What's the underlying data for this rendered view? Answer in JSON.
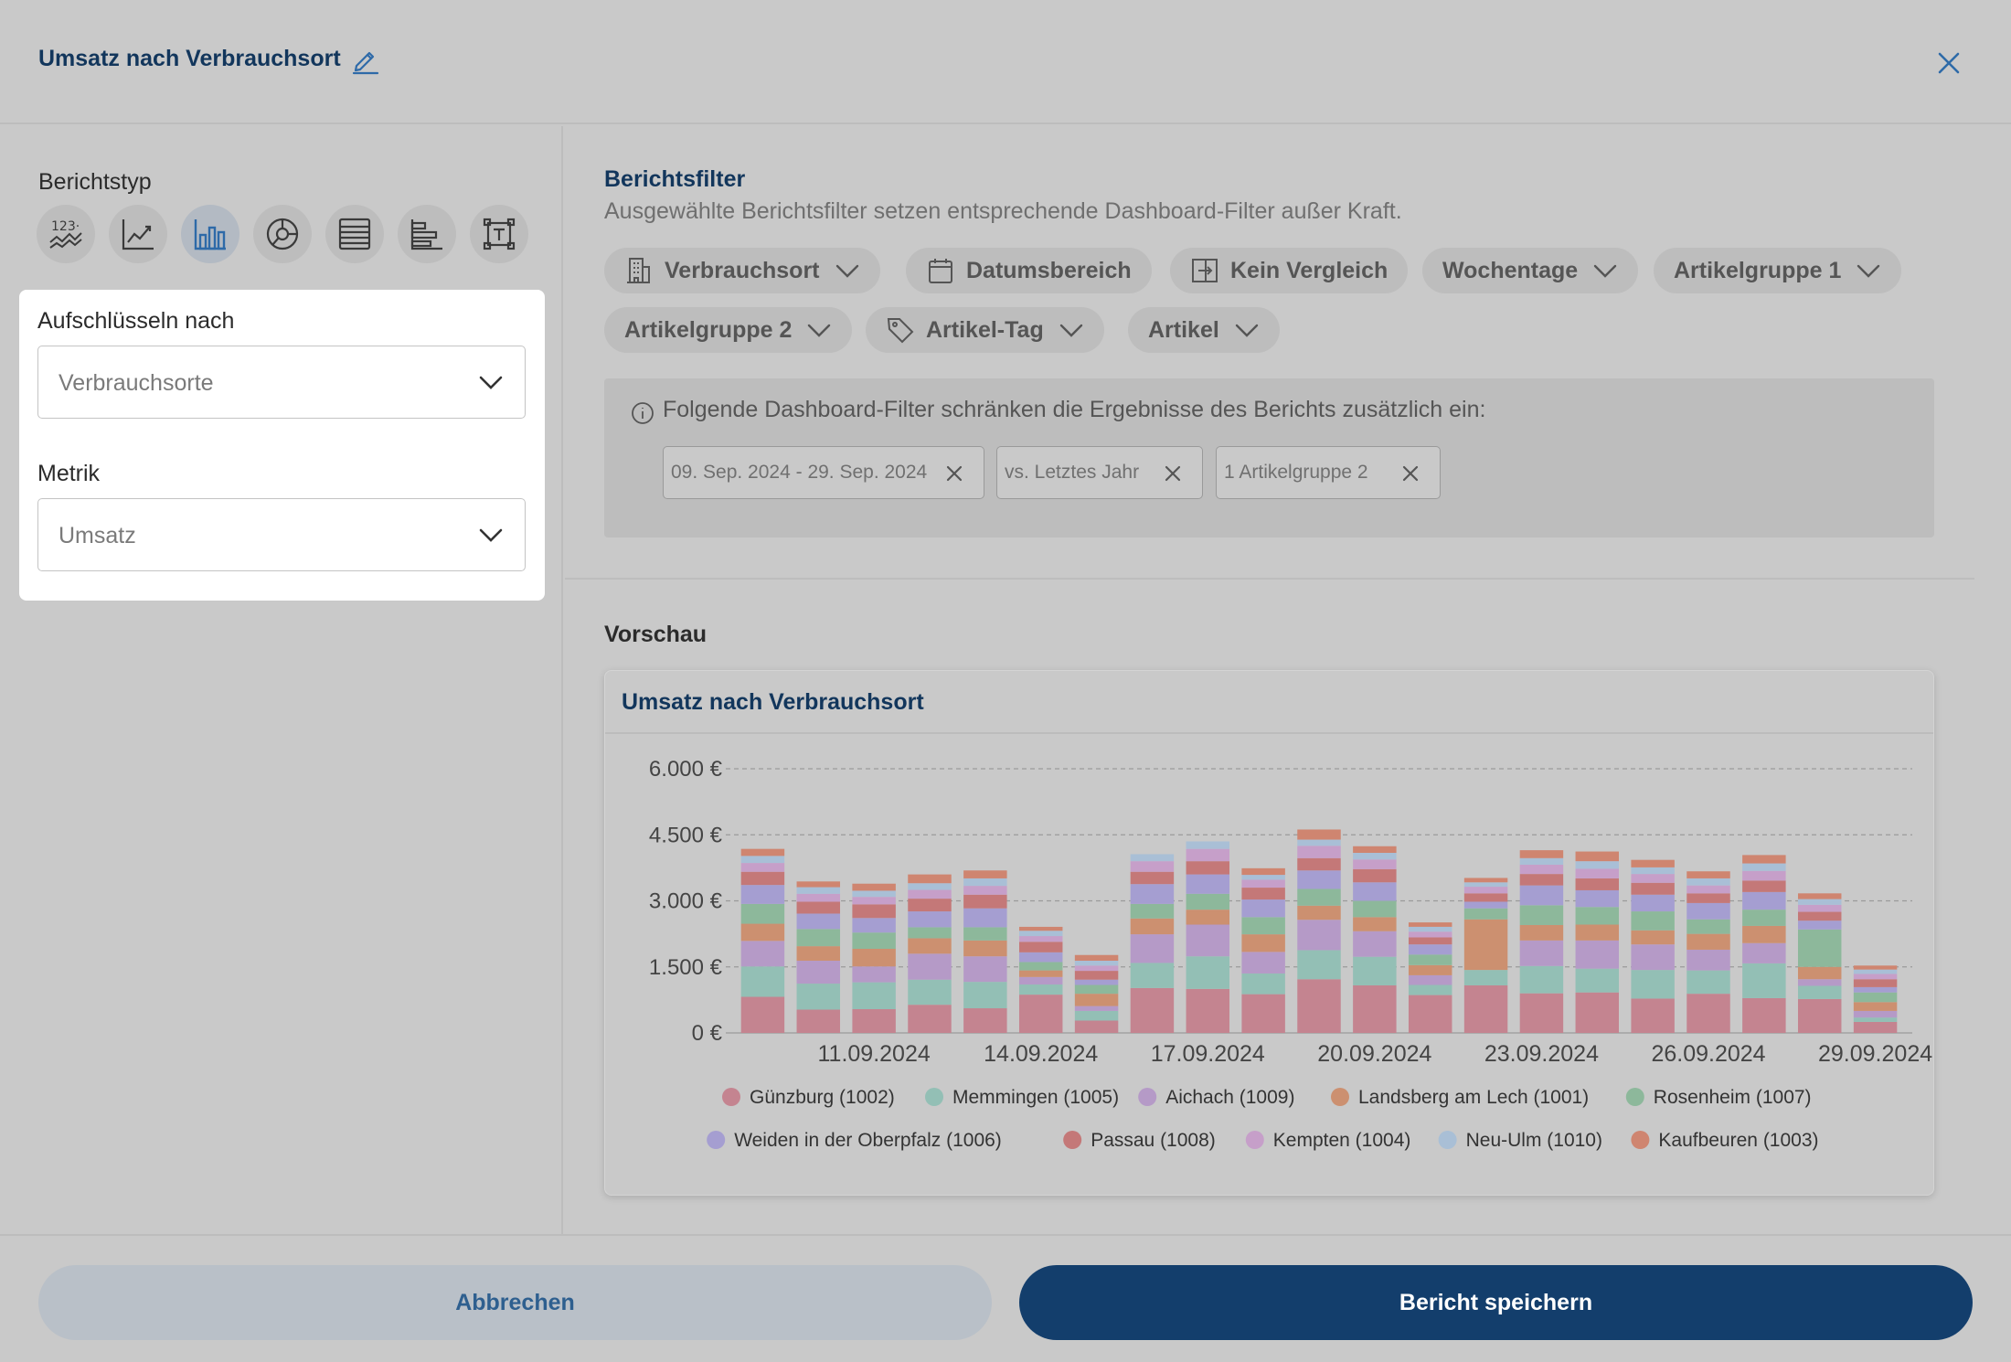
{
  "header": {
    "title": "Umsatz nach Verbrauchsort"
  },
  "left": {
    "report_type_label": "Berichtstyp",
    "report_types": [
      {
        "name": "kpi-type-icon",
        "active": false
      },
      {
        "name": "line-chart-type-icon",
        "active": false
      },
      {
        "name": "bar-chart-type-icon",
        "active": true
      },
      {
        "name": "pie-chart-type-icon",
        "active": false
      },
      {
        "name": "table-type-icon",
        "active": false
      },
      {
        "name": "horizontal-bar-type-icon",
        "active": false
      },
      {
        "name": "text-type-icon",
        "active": false
      }
    ],
    "breakdown_label": "Aufschlüsseln nach",
    "breakdown_value": "Verbrauchsorte",
    "metric_label": "Metrik",
    "metric_value": "Umsatz"
  },
  "filters": {
    "title": "Berichtsfilter",
    "subtitle": "Ausgewählte Berichtsfilter setzen entsprechende Dashboard-Filter außer Kraft.",
    "chips": [
      "Verbrauchsort",
      "Datumsbereich",
      "Kein Vergleich",
      "Wochentage",
      "Artikelgruppe 1",
      "Artikelgruppe 2",
      "Artikel-Tag",
      "Artikel"
    ],
    "info_text": "Folgende Dashboard-Filter schränken die Ergebnisse des Berichts zusätzlich ein:",
    "active_tags": [
      "09. Sep. 2024 - 29. Sep. 2024",
      "vs. Letztes Jahr",
      "1 Artikelgruppe 2"
    ]
  },
  "preview": {
    "label": "Vorschau",
    "card_title": "Umsatz nach Verbrauchsort"
  },
  "chart_data": {
    "type": "bar",
    "stacked": true,
    "title": "Umsatz nach Verbrauchsort",
    "ylim": [
      0,
      6000
    ],
    "yticks": [
      0,
      1500,
      3000,
      4500,
      6000
    ],
    "ytick_labels": [
      "0 €",
      "1.500 €",
      "3.000 €",
      "4.500 €",
      "6.000 €"
    ],
    "xtick_labels": [
      "11.09.2024",
      "14.09.2024",
      "17.09.2024",
      "20.09.2024",
      "23.09.2024",
      "26.09.2024",
      "29.09.2024"
    ],
    "xtick_index": [
      2,
      5,
      8,
      11,
      14,
      17,
      20
    ],
    "grid": true,
    "legend_position": "bottom",
    "categories": [
      "09.09.2024",
      "10.09.2024",
      "11.09.2024",
      "12.09.2024",
      "13.09.2024",
      "14.09.2024",
      "15.09.2024",
      "16.09.2024",
      "17.09.2024",
      "18.09.2024",
      "19.09.2024",
      "20.09.2024",
      "21.09.2024",
      "22.09.2024",
      "23.09.2024",
      "24.09.2024",
      "25.09.2024",
      "26.09.2024",
      "27.09.2024",
      "28.09.2024",
      "29.09.2024"
    ],
    "series": [
      {
        "name": "Günzburg (1002)",
        "color": "#c48490",
        "values": [
          820,
          530,
          540,
          640,
          560,
          870,
          280,
          1020,
          1000,
          880,
          1220,
          1080,
          860,
          1080,
          900,
          920,
          780,
          890,
          790,
          770,
          250
        ]
      },
      {
        "name": "Memmingen (1005)",
        "color": "#93bfb5",
        "values": [
          690,
          590,
          610,
          570,
          600,
          230,
          220,
          570,
          740,
          470,
          660,
          650,
          230,
          350,
          620,
          540,
          650,
          530,
          790,
          300,
          100
        ]
      },
      {
        "name": "Aichach (1009)",
        "color": "#b59ac7",
        "values": [
          580,
          520,
          360,
          590,
          580,
          170,
          110,
          650,
          720,
          490,
          690,
          580,
          220,
          0,
          580,
          640,
          580,
          470,
          460,
          150,
          150
        ]
      },
      {
        "name": "Landsberg am Lech (1001)",
        "color": "#cc9070",
        "values": [
          390,
          330,
          400,
          350,
          360,
          150,
          280,
          360,
          340,
          400,
          320,
          320,
          230,
          1150,
          350,
          360,
          320,
          360,
          390,
          280,
          200
        ]
      },
      {
        "name": "Rosenheim (1007)",
        "color": "#8db89b",
        "values": [
          450,
          390,
          370,
          250,
          300,
          190,
          200,
          330,
          360,
          390,
          380,
          370,
          240,
          250,
          450,
          400,
          430,
          330,
          370,
          850,
          220
        ]
      },
      {
        "name": "Weiden in der Oberpfalz (1006)",
        "color": "#a59ed1",
        "values": [
          430,
          350,
          330,
          360,
          430,
          220,
          120,
          450,
          440,
          400,
          420,
          420,
          230,
          150,
          450,
          380,
          380,
          370,
          400,
          200,
          120
        ]
      },
      {
        "name": "Passau (1008)",
        "color": "#c47878",
        "values": [
          300,
          270,
          310,
          290,
          310,
          240,
          200,
          280,
          300,
          270,
          280,
          300,
          160,
          190,
          260,
          270,
          270,
          220,
          260,
          200,
          180
        ]
      },
      {
        "name": "Kempten (1004)",
        "color": "#c69fc9",
        "values": [
          200,
          180,
          170,
          200,
          200,
          130,
          120,
          240,
          280,
          180,
          280,
          220,
          130,
          150,
          210,
          220,
          200,
          180,
          220,
          160,
          120
        ]
      },
      {
        "name": "Neu-Ulm (1010)",
        "color": "#a9bfd6",
        "values": [
          160,
          150,
          140,
          150,
          170,
          120,
          110,
          160,
          170,
          110,
          140,
          150,
          110,
          100,
          150,
          170,
          150,
          160,
          170,
          130,
          100
        ]
      },
      {
        "name": "Kaufbeuren (1003)",
        "color": "#cf8570",
        "values": [
          160,
          130,
          160,
          200,
          180,
          90,
          130,
          0,
          0,
          150,
          230,
          150,
          100,
          100,
          180,
          220,
          170,
          160,
          190,
          130,
          90
        ]
      }
    ]
  },
  "footer": {
    "cancel_label": "Abbrechen",
    "save_label": "Bericht speichern"
  }
}
